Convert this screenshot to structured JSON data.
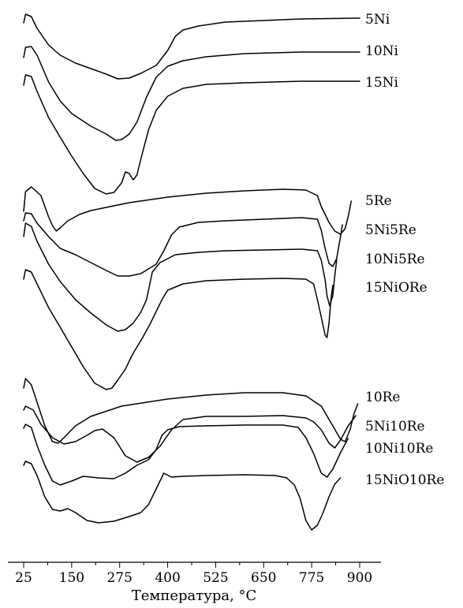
{
  "chart_data": {
    "type": "line",
    "title": "",
    "xlabel": "Температура, °C",
    "ylabel": "",
    "xlim": [
      10,
      930
    ],
    "x_ticks": [
      25,
      150,
      275,
      400,
      525,
      650,
      775,
      900
    ],
    "grid": false,
    "legend": "labels at right end of each curve",
    "series": [
      {
        "name": "5Ni",
        "points": [
          [
            25,
            29
          ],
          [
            30,
            18
          ],
          [
            45,
            21
          ],
          [
            60,
            36
          ],
          [
            90,
            57
          ],
          [
            120,
            70
          ],
          [
            160,
            80
          ],
          [
            200,
            87
          ],
          [
            240,
            94
          ],
          [
            270,
            100
          ],
          [
            300,
            99
          ],
          [
            330,
            93
          ],
          [
            370,
            83
          ],
          [
            400,
            64
          ],
          [
            420,
            46
          ],
          [
            440,
            38
          ],
          [
            480,
            33
          ],
          [
            550,
            28
          ],
          [
            650,
            26
          ],
          [
            750,
            24
          ],
          [
            900,
            23
          ]
        ]
      },
      {
        "name": "10Ni",
        "points": [
          [
            25,
            73
          ],
          [
            30,
            60
          ],
          [
            45,
            59
          ],
          [
            60,
            70
          ],
          [
            90,
            104
          ],
          [
            120,
            128
          ],
          [
            150,
            144
          ],
          [
            200,
            160
          ],
          [
            240,
            170
          ],
          [
            265,
            178
          ],
          [
            280,
            177
          ],
          [
            300,
            170
          ],
          [
            320,
            155
          ],
          [
            345,
            123
          ],
          [
            370,
            98
          ],
          [
            400,
            84
          ],
          [
            440,
            77
          ],
          [
            500,
            72
          ],
          [
            600,
            68
          ],
          [
            750,
            66
          ],
          [
            900,
            66
          ]
        ]
      },
      {
        "name": "15Ni",
        "points": [
          [
            25,
            108
          ],
          [
            30,
            95
          ],
          [
            45,
            97
          ],
          [
            60,
            116
          ],
          [
            90,
            149
          ],
          [
            120,
            174
          ],
          [
            150,
            198
          ],
          [
            180,
            220
          ],
          [
            210,
            239
          ],
          [
            240,
            246
          ],
          [
            260,
            244
          ],
          [
            280,
            232
          ],
          [
            290,
            218
          ],
          [
            300,
            220
          ],
          [
            310,
            228
          ],
          [
            320,
            222
          ],
          [
            330,
            202
          ],
          [
            350,
            165
          ],
          [
            370,
            140
          ],
          [
            400,
            122
          ],
          [
            440,
            112
          ],
          [
            500,
            107
          ],
          [
            600,
            105
          ],
          [
            750,
            103
          ],
          [
            900,
            103
          ]
        ]
      },
      {
        "name": "5Re",
        "points": [
          [
            25,
            268
          ],
          [
            30,
            243
          ],
          [
            45,
            237
          ],
          [
            70,
            248
          ],
          [
            90,
            275
          ],
          [
            100,
            286
          ],
          [
            110,
            293
          ],
          [
            120,
            289
          ],
          [
            140,
            280
          ],
          [
            170,
            272
          ],
          [
            200,
            267
          ],
          [
            300,
            257
          ],
          [
            400,
            250
          ],
          [
            500,
            245
          ],
          [
            600,
            242
          ],
          [
            700,
            240
          ],
          [
            760,
            241
          ],
          [
            790,
            248
          ],
          [
            800,
            262
          ],
          [
            820,
            282
          ],
          [
            835,
            293
          ],
          [
            850,
            297
          ],
          [
            862,
            290
          ],
          [
            870,
            275
          ],
          [
            878,
            255
          ]
        ]
      },
      {
        "name": "5Ni5Re",
        "points": [
          [
            25,
            280
          ],
          [
            30,
            270
          ],
          [
            45,
            271
          ],
          [
            60,
            283
          ],
          [
            90,
            300
          ],
          [
            120,
            315
          ],
          [
            160,
            323
          ],
          [
            200,
            333
          ],
          [
            240,
            343
          ],
          [
            270,
            350
          ],
          [
            300,
            350
          ],
          [
            330,
            347
          ],
          [
            370,
            335
          ],
          [
            390,
            318
          ],
          [
            410,
            298
          ],
          [
            430,
            288
          ],
          [
            480,
            282
          ],
          [
            550,
            280
          ],
          [
            650,
            278
          ],
          [
            750,
            276
          ],
          [
            790,
            278
          ],
          [
            800,
            292
          ],
          [
            810,
            315
          ],
          [
            820,
            334
          ],
          [
            830,
            338
          ],
          [
            840,
            328
          ],
          [
            850,
            300
          ],
          [
            855,
            285
          ]
        ]
      },
      {
        "name": "10Ni5Re",
        "points": [
          [
            25,
            300
          ],
          [
            30,
            283
          ],
          [
            45,
            287
          ],
          [
            60,
            306
          ],
          [
            90,
            335
          ],
          [
            120,
            357
          ],
          [
            160,
            380
          ],
          [
            200,
            397
          ],
          [
            240,
            412
          ],
          [
            270,
            420
          ],
          [
            290,
            418
          ],
          [
            310,
            410
          ],
          [
            330,
            396
          ],
          [
            345,
            380
          ],
          [
            360,
            345
          ],
          [
            380,
            333
          ],
          [
            420,
            323
          ],
          [
            480,
            320
          ],
          [
            550,
            318
          ],
          [
            650,
            317
          ],
          [
            750,
            316
          ],
          [
            790,
            318
          ],
          [
            800,
            330
          ],
          [
            810,
            355
          ],
          [
            815,
            375
          ],
          [
            822,
            388
          ],
          [
            830,
            375
          ],
          [
            835,
            350
          ],
          [
            840,
            330
          ]
        ]
      },
      {
        "name": "15NiORe",
        "points": [
          [
            25,
            354
          ],
          [
            30,
            342
          ],
          [
            45,
            345
          ],
          [
            60,
            360
          ],
          [
            90,
            390
          ],
          [
            120,
            415
          ],
          [
            150,
            440
          ],
          [
            180,
            465
          ],
          [
            210,
            486
          ],
          [
            240,
            494
          ],
          [
            255,
            492
          ],
          [
            270,
            482
          ],
          [
            290,
            468
          ],
          [
            310,
            448
          ],
          [
            335,
            428
          ],
          [
            355,
            410
          ],
          [
            370,
            395
          ],
          [
            385,
            380
          ],
          [
            400,
            368
          ],
          [
            440,
            360
          ],
          [
            500,
            356
          ],
          [
            600,
            354
          ],
          [
            700,
            353
          ],
          [
            760,
            354
          ],
          [
            780,
            360
          ],
          [
            790,
            380
          ],
          [
            800,
            402
          ],
          [
            810,
            425
          ],
          [
            815,
            428
          ],
          [
            820,
            410
          ],
          [
            825,
            380
          ],
          [
            830,
            362
          ]
        ]
      },
      {
        "name": "10Re",
        "points": [
          [
            25,
            492
          ],
          [
            30,
            480
          ],
          [
            45,
            488
          ],
          [
            60,
            510
          ],
          [
            80,
            540
          ],
          [
            100,
            560
          ],
          [
            115,
            562
          ],
          [
            130,
            555
          ],
          [
            160,
            540
          ],
          [
            200,
            528
          ],
          [
            280,
            515
          ],
          [
            400,
            506
          ],
          [
            500,
            501
          ],
          [
            600,
            498
          ],
          [
            700,
            498
          ],
          [
            760,
            502
          ],
          [
            800,
            515
          ],
          [
            830,
            540
          ],
          [
            850,
            557
          ],
          [
            862,
            560
          ],
          [
            875,
            545
          ],
          [
            885,
            525
          ],
          [
            895,
            512
          ]
        ]
      },
      {
        "name": "5Ni10Re",
        "points": [
          [
            25,
            520
          ],
          [
            30,
            515
          ],
          [
            50,
            520
          ],
          [
            70,
            538
          ],
          [
            100,
            555
          ],
          [
            130,
            563
          ],
          [
            160,
            560
          ],
          [
            190,
            552
          ],
          [
            210,
            546
          ],
          [
            230,
            544
          ],
          [
            260,
            555
          ],
          [
            290,
            578
          ],
          [
            320,
            586
          ],
          [
            350,
            580
          ],
          [
            380,
            566
          ],
          [
            410,
            545
          ],
          [
            440,
            532
          ],
          [
            500,
            528
          ],
          [
            600,
            528
          ],
          [
            700,
            527
          ],
          [
            760,
            530
          ],
          [
            780,
            535
          ],
          [
            800,
            545
          ],
          [
            820,
            562
          ],
          [
            835,
            568
          ],
          [
            850,
            558
          ],
          [
            870,
            540
          ],
          [
            890,
            527
          ]
        ]
      },
      {
        "name": "10Ni10Re",
        "points": [
          [
            25,
            543
          ],
          [
            30,
            538
          ],
          [
            45,
            542
          ],
          [
            60,
            565
          ],
          [
            80,
            590
          ],
          [
            100,
            610
          ],
          [
            120,
            615
          ],
          [
            150,
            610
          ],
          [
            180,
            604
          ],
          [
            220,
            606
          ],
          [
            260,
            607
          ],
          [
            290,
            600
          ],
          [
            320,
            590
          ],
          [
            350,
            583
          ],
          [
            370,
            570
          ],
          [
            385,
            552
          ],
          [
            400,
            545
          ],
          [
            430,
            541
          ],
          [
            500,
            540
          ],
          [
            600,
            539
          ],
          [
            700,
            539
          ],
          [
            740,
            542
          ],
          [
            760,
            555
          ],
          [
            780,
            575
          ],
          [
            800,
            600
          ],
          [
            815,
            605
          ],
          [
            830,
            595
          ],
          [
            850,
            574
          ],
          [
            870,
            556
          ]
        ]
      },
      {
        "name": "15NiO10Re",
        "points": [
          [
            25,
            590
          ],
          [
            30,
            585
          ],
          [
            45,
            588
          ],
          [
            60,
            603
          ],
          [
            80,
            630
          ],
          [
            100,
            646
          ],
          [
            120,
            648
          ],
          [
            140,
            645
          ],
          [
            160,
            650
          ],
          [
            190,
            660
          ],
          [
            220,
            663
          ],
          [
            260,
            661
          ],
          [
            300,
            655
          ],
          [
            330,
            650
          ],
          [
            350,
            640
          ],
          [
            370,
            620
          ],
          [
            390,
            600
          ],
          [
            410,
            605
          ],
          [
            440,
            604
          ],
          [
            500,
            603
          ],
          [
            600,
            602
          ],
          [
            680,
            603
          ],
          [
            710,
            606
          ],
          [
            730,
            615
          ],
          [
            745,
            632
          ],
          [
            760,
            660
          ],
          [
            775,
            672
          ],
          [
            790,
            666
          ],
          [
            805,
            650
          ],
          [
            820,
            630
          ],
          [
            835,
            614
          ],
          [
            850,
            606
          ]
        ]
      }
    ]
  }
}
